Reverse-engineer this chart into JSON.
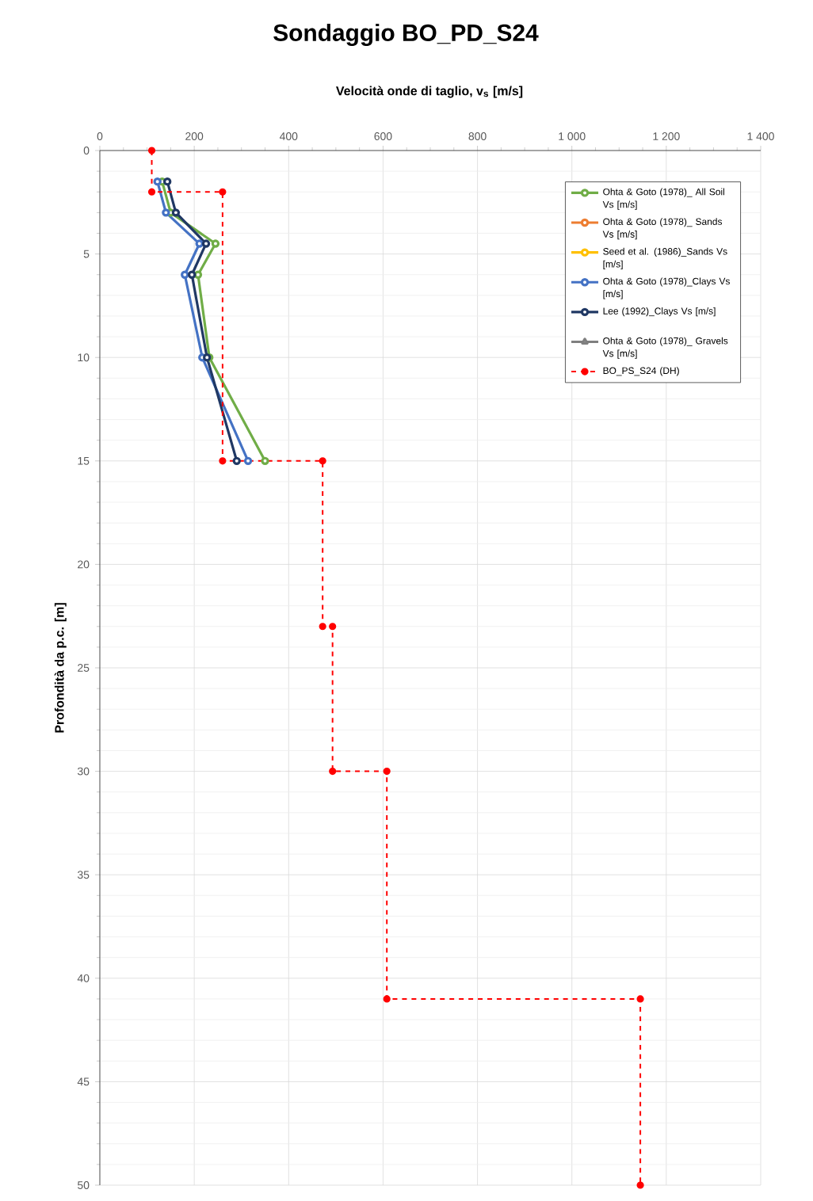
{
  "chart_data": {
    "type": "line",
    "title": "Sondaggio BO_PD_S24",
    "xlabel": "Velocità onde di taglio, v$_{s}$ [m/s]",
    "ylabel": "Profondità da p.c. [m]",
    "xlim": [
      0,
      1400
    ],
    "ylim": [
      50,
      0
    ],
    "xticks": [
      0,
      200,
      400,
      600,
      800,
      {
        "value": 1000,
        "label": "1 000"
      },
      {
        "value": 1200,
        "label": "1 200"
      },
      {
        "value": 1400,
        "label": "1 400"
      }
    ],
    "yticks": [
      0,
      5,
      10,
      15,
      20,
      25,
      30,
      35,
      40,
      45,
      50
    ],
    "grid": true,
    "legend": "top right",
    "series": [
      {
        "name": "Ohta & Goto (1978)_ All Soil Vs [m/s]",
        "color": "#70ad47",
        "marker": "circle",
        "line_style": "solid",
        "x": [
          132,
          150,
          245,
          208,
          232,
          350
        ],
        "values": [
          1.5,
          3,
          4.5,
          6,
          10,
          15
        ]
      },
      {
        "name": "Ohta & Goto (1978)_ Sands Vs [m/s]",
        "color": "#ed7d31",
        "marker": "circle",
        "line_style": "solid",
        "x": [
          null,
          null,
          null,
          null,
          null,
          null
        ],
        "values": [
          null,
          null,
          null,
          null,
          null,
          null
        ]
      },
      {
        "name": "Seed et al. (1986)_Sands Vs [m/s]",
        "color": "#ffc000",
        "marker": "circle",
        "line_style": "solid",
        "x": [
          null,
          null,
          null,
          null,
          null,
          null
        ],
        "values": [
          null,
          null,
          null,
          null,
          null,
          null
        ]
      },
      {
        "name": "Ohta & Goto (1978)_Clays Vs [m/s]",
        "color": "#4472c4",
        "marker": "circle",
        "line_style": "solid",
        "x": [
          122,
          140,
          211,
          180,
          217,
          314
        ],
        "values": [
          1.5,
          3,
          4.5,
          6,
          10,
          15
        ]
      },
      {
        "name": "Lee (1992)_Clays Vs [m/s]",
        "color": "#203864",
        "marker": "circle",
        "line_style": "solid",
        "x": [
          143,
          161,
          225,
          195,
          227,
          290
        ],
        "values": [
          1.5,
          3,
          4.5,
          6,
          10,
          15
        ]
      },
      {
        "name": "Ohta & Goto (1978)_ Gravels Vs [m/s]",
        "color": "#7f7f7f",
        "marker": "triangle",
        "line_style": "solid",
        "x": [
          null,
          null,
          null,
          null,
          null,
          null
        ],
        "values": [
          null,
          null,
          null,
          null,
          null,
          null
        ]
      },
      {
        "name": "BO_PS_S24 (DH)",
        "color": "#ff0000",
        "marker": "circle",
        "line_style": "dashed",
        "x": [
          110,
          110,
          260,
          260,
          472,
          472,
          493,
          493,
          608,
          608,
          1145,
          1145
        ],
        "values": [
          0,
          2,
          2,
          15,
          15,
          23,
          23,
          30,
          30,
          41,
          41,
          50
        ]
      }
    ]
  }
}
